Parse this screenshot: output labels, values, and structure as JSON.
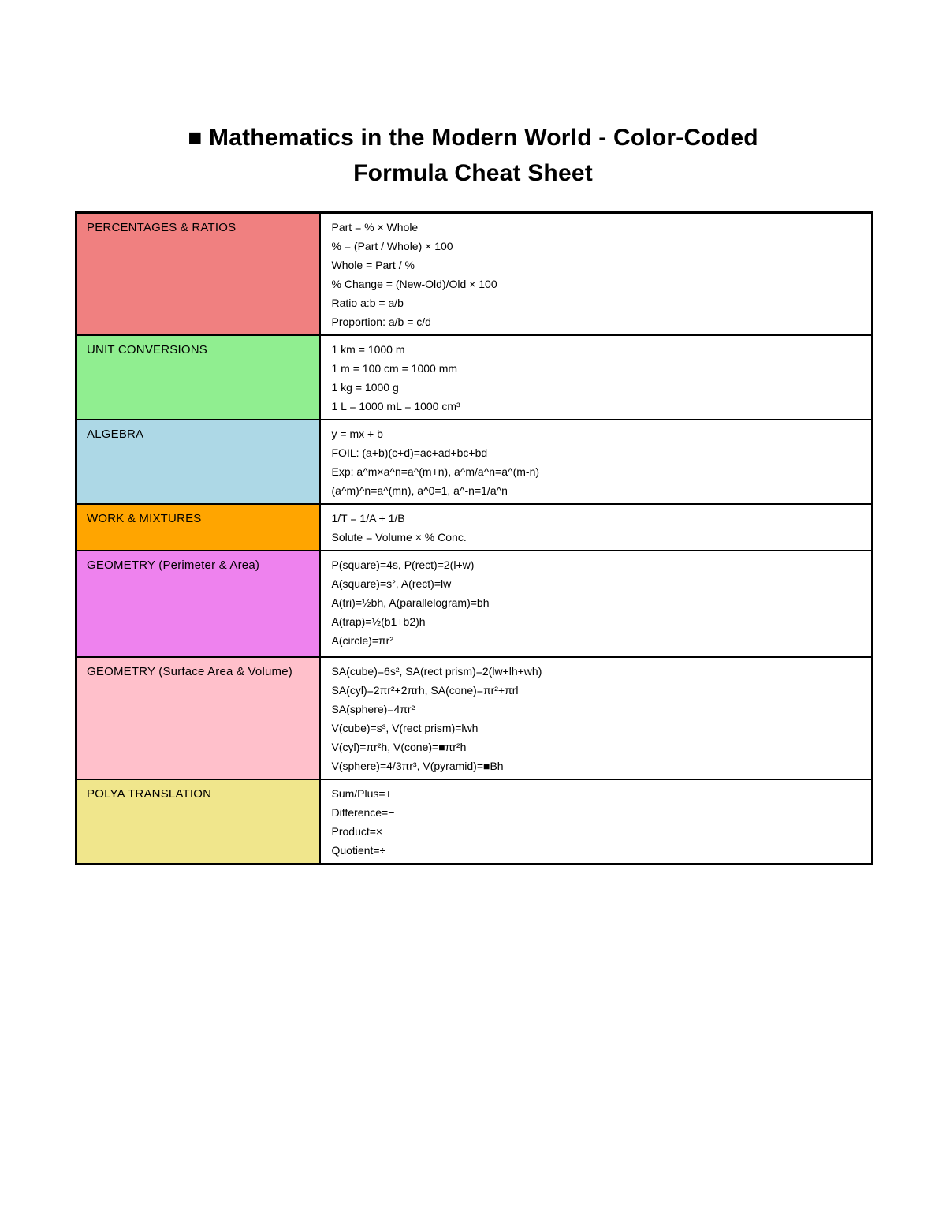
{
  "title": {
    "line1": "■ Mathematics in the Modern World - Color-Coded",
    "line2": "Formula Cheat Sheet"
  },
  "table": {
    "rows": [
      {
        "category": "PERCENTAGES & RATIOS",
        "color": "#F08080",
        "formulas": [
          "Part = % × Whole",
          "% = (Part / Whole) × 100",
          "Whole = Part / %",
          "% Change = (New-Old)/Old × 100",
          "Ratio a:b = a/b",
          "Proportion: a/b = c/d"
        ]
      },
      {
        "category": "UNIT CONVERSIONS",
        "color": "#90EE90",
        "formulas": [
          "1 km = 1000 m",
          "1 m = 100 cm = 1000 mm",
          "1 kg = 1000 g",
          "1 L = 1000 mL = 1000 cm³"
        ]
      },
      {
        "category": "ALGEBRA",
        "color": "#ADD8E6",
        "formulas": [
          "y = mx + b",
          "FOIL: (a+b)(c+d)=ac+ad+bc+bd",
          "Exp: a^m×a^n=a^(m+n), a^m/a^n=a^(m-n)",
          "(a^m)^n=a^(mn), a^0=1, a^-n=1/a^n"
        ]
      },
      {
        "category": "WORK & MIXTURES",
        "color": "#FFA500",
        "formulas": [
          "1/T = 1/A + 1/B",
          "Solute = Volume × % Conc."
        ]
      },
      {
        "category": "GEOMETRY (Perimeter & Area)",
        "color": "#EE82EE",
        "formulas": [
          "P(square)=4s, P(rect)=2(l+w)",
          "A(square)=s², A(rect)=lw",
          "A(tri)=½bh, A(parallelogram)=bh",
          "A(trap)=½(b1+b2)h",
          "A(circle)=πr²"
        ]
      },
      {
        "category": "GEOMETRY (Surface Area & Volume)",
        "color": "#FFC0CB",
        "formulas": [
          "SA(cube)=6s², SA(rect prism)=2(lw+lh+wh)",
          "SA(cyl)=2πr²+2πrh, SA(cone)=πr²+πrl",
          "SA(sphere)=4πr²",
          "V(cube)=s³, V(rect prism)=lwh",
          "V(cyl)=πr²h, V(cone)=■πr²h",
          "V(sphere)=4/3πr³, V(pyramid)=■Bh"
        ]
      },
      {
        "category": "POLYA TRANSLATION",
        "color": "#F0E68C",
        "formulas": [
          "Sum/Plus=+",
          "Difference=−",
          "Product=×",
          "Quotient=÷"
        ]
      }
    ]
  }
}
